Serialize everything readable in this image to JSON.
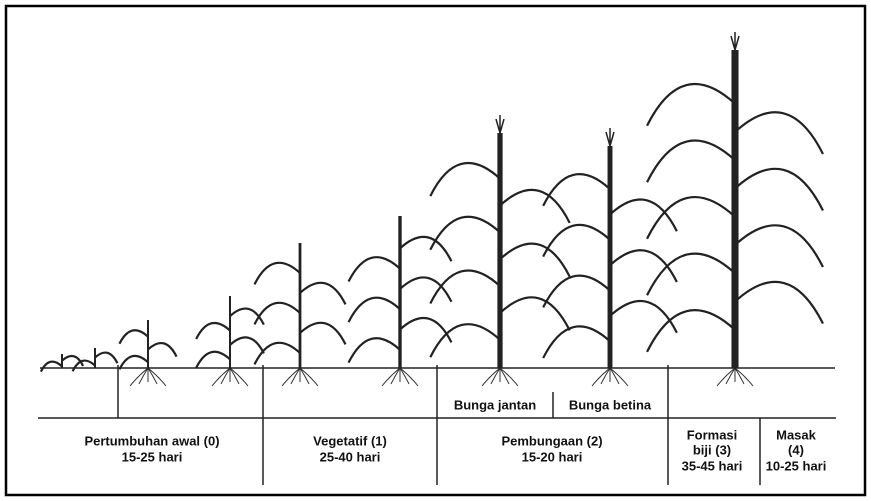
{
  "flower_labels": [
    "Bunga jantan",
    "Bunga betina"
  ],
  "stages": [
    {
      "label": [
        "Pertumbuhan awal (0)"
      ],
      "duration": "15-25 hari"
    },
    {
      "label": [
        "Vegetatif (1)"
      ],
      "duration": "25-40 hari"
    },
    {
      "label": [
        "Pembungaan (2)"
      ],
      "duration": "15-20 hari"
    },
    {
      "label": [
        "Formasi",
        "biji (3)"
      ],
      "duration": "35-45 hari"
    },
    {
      "label": [
        "Masak",
        "(4)"
      ],
      "duration": "10-25 hari"
    }
  ]
}
